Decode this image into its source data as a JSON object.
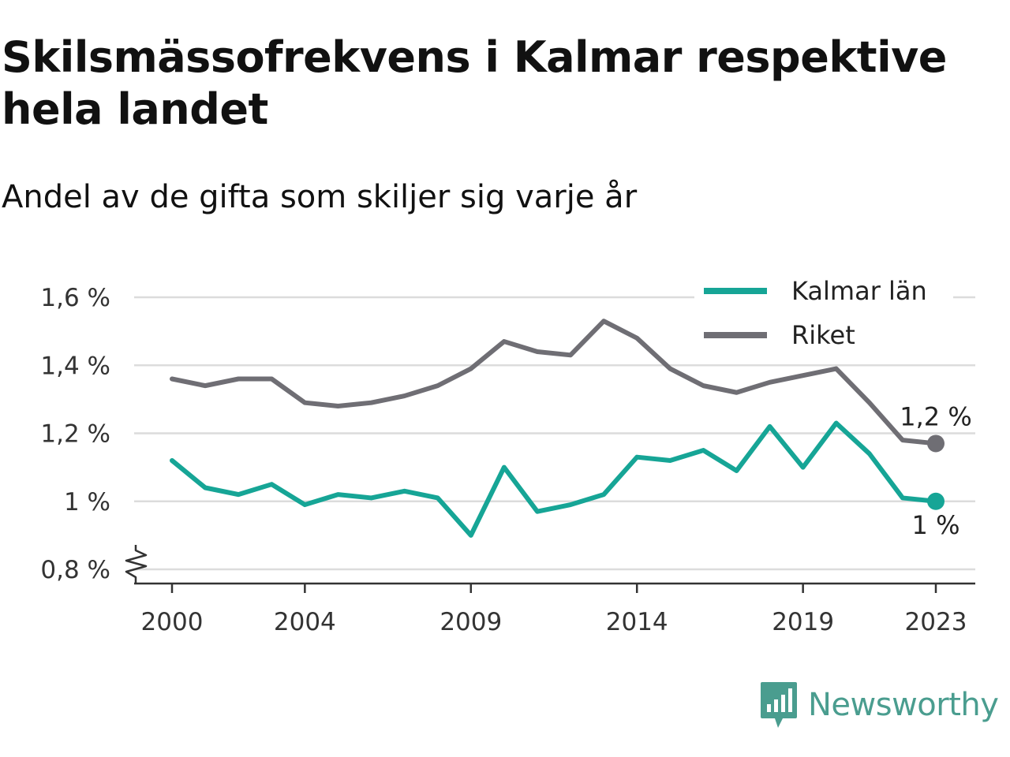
{
  "title": "Skilsmässofrekvens i Kalmar respektive hela landet",
  "subtitle": "Andel av de gifta som skiljer sig varje år",
  "brand": "Newsworthy",
  "colors": {
    "kalmar": "#16a596",
    "riket": "#6f6e74",
    "grid": "#dcdcdc",
    "axis": "#333333",
    "brand": "#4a9d8f"
  },
  "chart_data": {
    "type": "line",
    "x": [
      2000,
      2001,
      2002,
      2003,
      2004,
      2005,
      2006,
      2007,
      2008,
      2009,
      2010,
      2011,
      2012,
      2013,
      2014,
      2015,
      2016,
      2017,
      2018,
      2019,
      2020,
      2021,
      2022,
      2023
    ],
    "x_ticks": [
      2000,
      2004,
      2009,
      2014,
      2019,
      2023
    ],
    "y_ticks": [
      0.8,
      1.0,
      1.2,
      1.4,
      1.6
    ],
    "y_tick_labels": [
      "0,8 %",
      "1 %",
      "1,2 %",
      "1,4 %",
      "1,6 %"
    ],
    "ylim": [
      0.8,
      1.6
    ],
    "grid": true,
    "legend": "top-right",
    "series": [
      {
        "name": "Kalmar län",
        "color": "#16a596",
        "values": [
          1.12,
          1.04,
          1.02,
          1.05,
          0.99,
          1.02,
          1.01,
          1.03,
          1.01,
          0.9,
          1.1,
          0.97,
          0.99,
          1.02,
          1.13,
          1.12,
          1.15,
          1.09,
          1.22,
          1.1,
          1.23,
          1.14,
          1.01,
          1.0
        ],
        "end_label": "1 %"
      },
      {
        "name": "Riket",
        "color": "#6f6e74",
        "values": [
          1.36,
          1.34,
          1.36,
          1.36,
          1.29,
          1.28,
          1.29,
          1.31,
          1.34,
          1.39,
          1.47,
          1.44,
          1.43,
          1.53,
          1.48,
          1.39,
          1.34,
          1.32,
          1.35,
          1.37,
          1.39,
          1.29,
          1.18,
          1.17
        ],
        "end_label": "1,2 %"
      }
    ]
  }
}
